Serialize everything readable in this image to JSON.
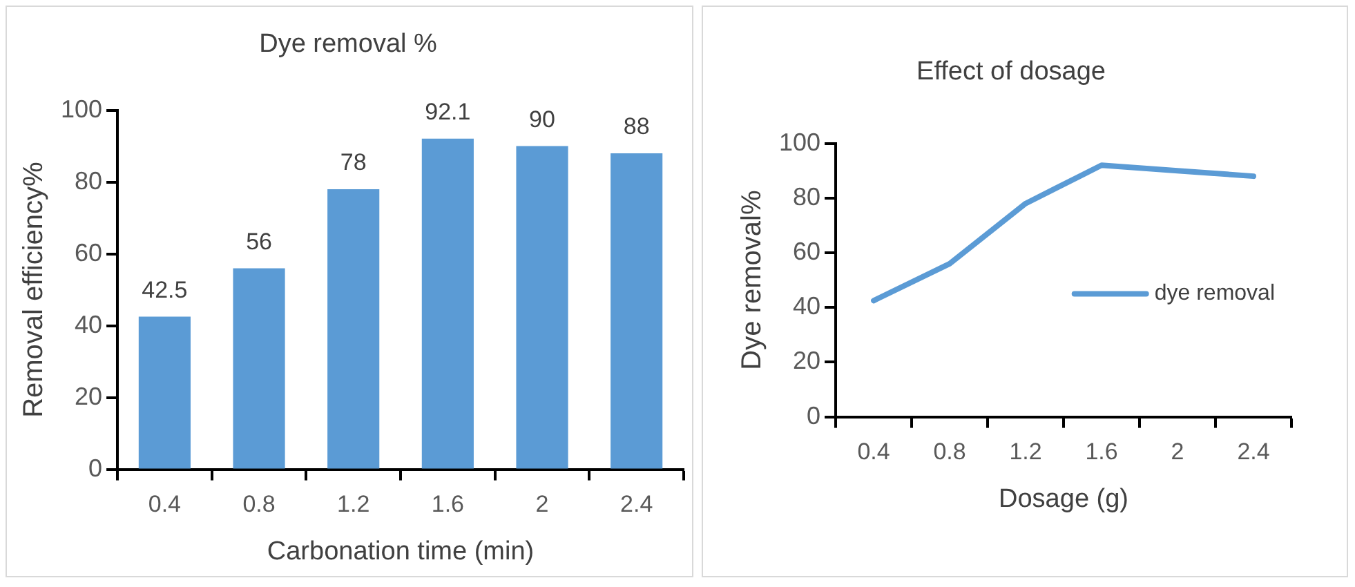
{
  "chart_data": [
    {
      "type": "bar",
      "title": "Dye removal %",
      "xlabel": "Carbonation time (min)",
      "ylabel": "Removal efficiency%",
      "categories": [
        "0.4",
        "0.8",
        "1.2",
        "1.6",
        "2",
        "2.4"
      ],
      "values": [
        42.5,
        56,
        78,
        92.1,
        90,
        88
      ],
      "color": "#5b9bd5",
      "ylim": [
        0,
        100
      ],
      "yticks": [
        0,
        20,
        40,
        60,
        80,
        100
      ],
      "grid": false,
      "data_labels": true
    },
    {
      "type": "line",
      "title": "Effect of dosage",
      "xlabel": "Dosage (g)",
      "ylabel": "Dye removal%",
      "categories": [
        "0.4",
        "0.8",
        "1.2",
        "1.6",
        "2",
        "2.4"
      ],
      "series": [
        {
          "name": "dye removal",
          "color": "#5b9bd5",
          "values": [
            42.5,
            56,
            78,
            92,
            90,
            88
          ]
        }
      ],
      "ylim": [
        0,
        100
      ],
      "yticks": [
        0,
        20,
        40,
        60,
        80,
        100
      ],
      "grid": false,
      "legend": "right",
      "marker": "none"
    }
  ]
}
